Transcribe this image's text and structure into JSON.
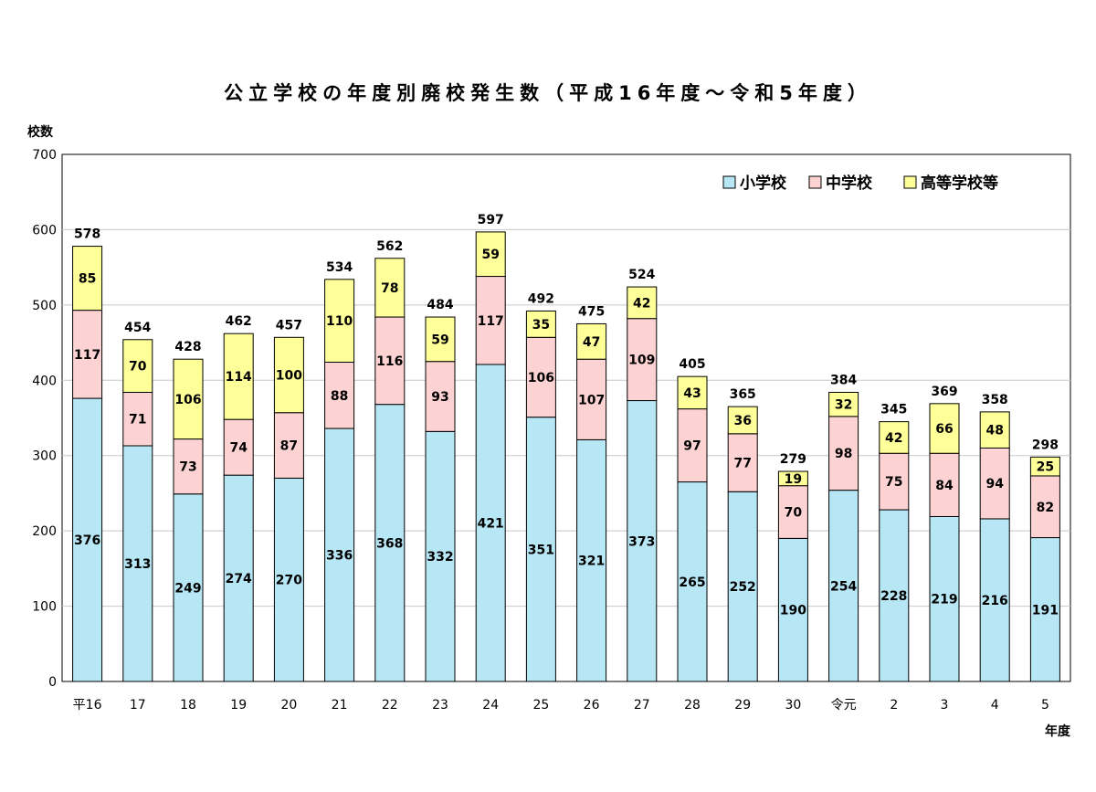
{
  "chart_data": {
    "type": "bar",
    "stacked": true,
    "title": "公立学校の年度別廃校発生数（平成16年度～令和5年度）",
    "ylabel": "校数",
    "xlabel": "年度",
    "ylim": [
      0,
      700
    ],
    "yticks": [
      0,
      100,
      200,
      300,
      400,
      500,
      600,
      700
    ],
    "grid": true,
    "legend_position": "top-right",
    "categories": [
      "平16",
      "17",
      "18",
      "19",
      "20",
      "21",
      "22",
      "23",
      "24",
      "25",
      "26",
      "27",
      "28",
      "29",
      "30",
      "令元",
      "2",
      "3",
      "4",
      "5"
    ],
    "series": [
      {
        "name": "小学校",
        "color": "#b7e6f5",
        "values": [
          376,
          313,
          249,
          274,
          270,
          336,
          368,
          332,
          421,
          351,
          321,
          373,
          265,
          252,
          190,
          254,
          228,
          219,
          216,
          191
        ]
      },
      {
        "name": "中学校",
        "color": "#fcd2d2",
        "values": [
          117,
          71,
          73,
          74,
          87,
          88,
          116,
          93,
          117,
          106,
          107,
          109,
          97,
          77,
          70,
          98,
          75,
          84,
          94,
          82
        ]
      },
      {
        "name": "高等学校等",
        "color": "#ffff99",
        "values": [
          85,
          70,
          106,
          114,
          100,
          110,
          78,
          59,
          59,
          35,
          47,
          42,
          43,
          36,
          19,
          32,
          42,
          66,
          48,
          25
        ]
      }
    ],
    "totals": [
      578,
      454,
      428,
      462,
      457,
      534,
      562,
      484,
      597,
      492,
      475,
      524,
      405,
      365,
      279,
      384,
      345,
      369,
      358,
      298
    ]
  }
}
